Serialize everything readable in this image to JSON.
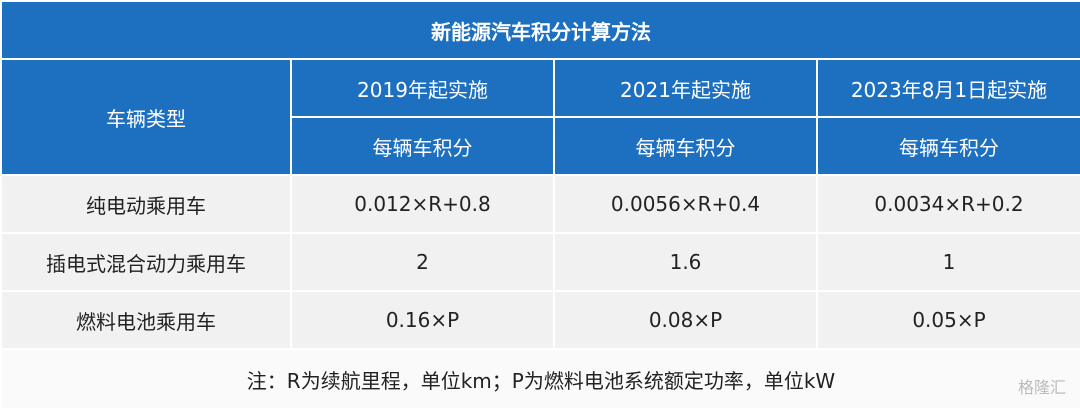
{
  "table": {
    "title": "新能源汽车积分计算方法",
    "header": {
      "row_label": "车辆类型",
      "periods": [
        "2019年起实施",
        "2021年起实施",
        "2023年8月1日起实施"
      ],
      "units": [
        "每辆车积分",
        "每辆车积分",
        "每辆车积分"
      ]
    },
    "rows": [
      [
        "纯电动乘用车",
        "0.012×R+0.8",
        "0.0056×R+0.4",
        "0.0034×R+0.2"
      ],
      [
        "插电式混合动力乘用车",
        "2",
        "1.6",
        "1"
      ],
      [
        "燃料电池乘用车",
        "0.16×P",
        "0.08×P",
        "0.05×P"
      ]
    ],
    "note": "注：R为续航里程，单位km；P为燃料电池系统额定功率，单位kW"
  },
  "watermark": "格隆汇"
}
